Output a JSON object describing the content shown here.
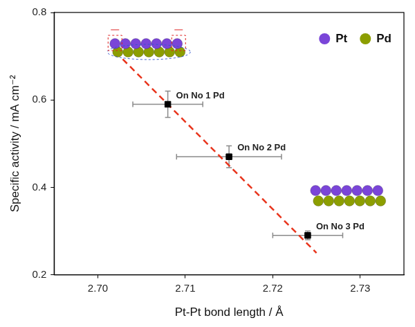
{
  "chart_data": {
    "type": "scatter",
    "x_label": "Pt-Pt bond length / Å",
    "y_label": "Specific activity / mA cm⁻²",
    "xlim": [
      2.695,
      2.735
    ],
    "xticks": [
      {
        "value": 2.7,
        "label": "2.70"
      },
      {
        "value": 2.71,
        "label": "2.71"
      },
      {
        "value": 2.72,
        "label": "2.72"
      },
      {
        "value": 2.73,
        "label": "2.73"
      }
    ],
    "ylim": [
      0.2,
      0.8
    ],
    "yticks": [
      0.2,
      0.4,
      0.6,
      0.8
    ],
    "grid": false,
    "legend": "top-right",
    "legend_entries": [
      {
        "name": "Pt",
        "color": "#7a45d8"
      },
      {
        "name": "Pd",
        "color": "#8c9e00"
      }
    ],
    "series": [
      {
        "color": "#000000",
        "marker": "square",
        "x": [
          2.708,
          2.715,
          2.724
        ],
        "values": [
          0.59,
          0.47,
          0.29
        ],
        "x_errors": [
          0.004,
          0.006,
          0.004
        ],
        "y_errors": [
          0.03,
          0.025,
          0.01
        ],
        "point_labels": [
          "On No 1 Pd",
          "On No 2 Pd",
          "On No 3 Pd"
        ]
      }
    ],
    "trend_line": {
      "color": "#e8341c",
      "line_style": "dashed",
      "x": [
        2.702,
        2.725
      ],
      "values": [
        0.71,
        0.25
      ]
    }
  }
}
